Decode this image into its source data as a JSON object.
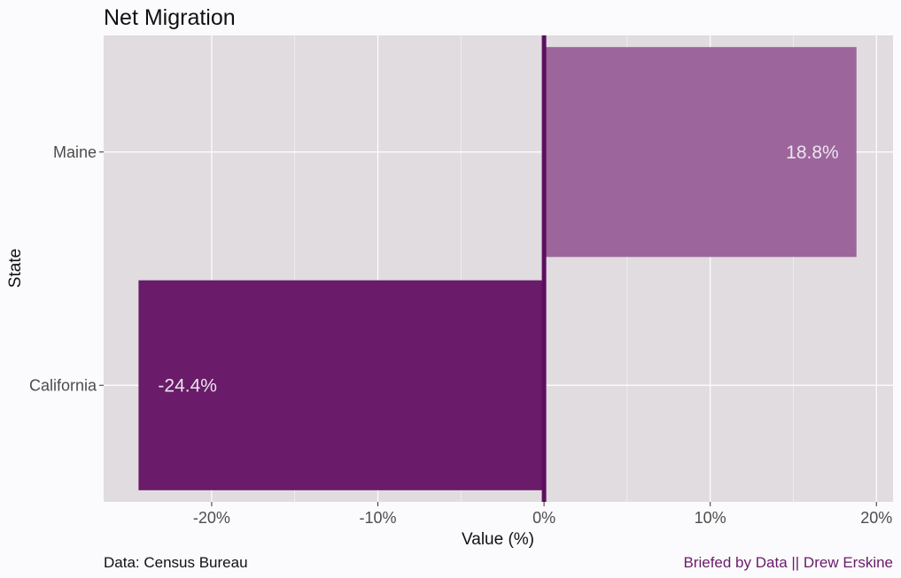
{
  "chart_data": {
    "type": "bar",
    "orientation": "horizontal",
    "title": "Net Migration",
    "xlabel": "Value (%)",
    "ylabel": "State",
    "categories": [
      "Maine",
      "California"
    ],
    "values": [
      18.8,
      -24.4
    ],
    "value_labels": [
      "18.8%",
      "-24.4%"
    ],
    "xlim": [
      -26.5,
      21.0
    ],
    "x_ticks": [
      -20,
      -10,
      0,
      10,
      20
    ],
    "x_tick_labels": [
      "-20%",
      "-10%",
      "0%",
      "10%",
      "20%"
    ],
    "grid": true,
    "legend": "none",
    "bar_colors": [
      "#9c669c",
      "#6a1b6a"
    ],
    "zero_line_color": "#5c0f60",
    "panel_background": "#e0dce0",
    "grid_color": "#ffffff"
  },
  "caption": {
    "source": "Data: Census Bureau",
    "credit": "Briefed by Data || Drew Erskine"
  }
}
